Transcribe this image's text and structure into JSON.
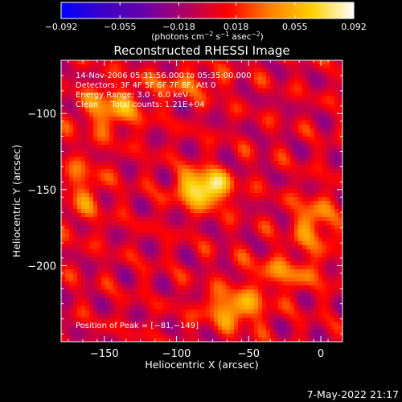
{
  "colorbar": {
    "tick_labels": [
      "−0.092",
      "−0.055",
      "−0.018",
      "0.018",
      "0.055",
      "0.092"
    ],
    "unit_main": "(photons cm",
    "unit_exp1": "−2",
    "unit_mid": " s",
    "unit_exp2": "−1",
    "unit_mid2": " asec",
    "unit_exp3": "−2",
    "unit_end": ")"
  },
  "plot": {
    "title": "Reconstructed RHESSI Image",
    "xlabel": "Heliocentric X (arcsec)",
    "ylabel": "Heliocentric Y (arcsec)",
    "x_tick_labels": [
      "−150",
      "−100",
      "−50",
      "0"
    ],
    "y_tick_labels": [
      "−100",
      "−150",
      "−200"
    ],
    "info_lines": [
      "14-Nov-2006 05:31:56.000 to 05:35:00.000",
      "Detectors: 3F 4F 5F 6F 7F 8F, Att 0",
      "Energy Range: 3.0 - 6.0 keV",
      "Clean     Total counts: 1.21E+04"
    ],
    "peak_label": "Position of Peak = [−81,−149]"
  },
  "footer": {
    "timestamp": "7-May-2022 21:17"
  },
  "chart_data": {
    "type": "heatmap",
    "title": "Reconstructed RHESSI Image",
    "xlabel": "Heliocentric X (arcsec)",
    "ylabel": "Heliocentric Y (arcsec)",
    "xlim": [
      -180,
      15
    ],
    "ylim": [
      -250,
      -65
    ],
    "x_ticks": [
      -150,
      -100,
      -50,
      0
    ],
    "y_ticks": [
      -100,
      -150,
      -200
    ],
    "colorbar_range": [
      -0.092,
      0.092
    ],
    "colorbar_ticks": [
      -0.092,
      -0.055,
      -0.018,
      0.018,
      0.055,
      0.092
    ],
    "colorbar_colors": [
      "#0000ff",
      "#3a00c8",
      "#6a00a8",
      "#b00060",
      "#ff0000",
      "#ff8000",
      "#ffd000",
      "#ffffff"
    ],
    "peak": [
      -81,
      -149
    ],
    "sources": [
      {
        "x": -81,
        "y": -149,
        "sx": 12,
        "sy": 8,
        "amp": 0.095
      },
      {
        "x": -145,
        "y": -97,
        "sx": 14,
        "sy": 10,
        "amp": 0.05
      },
      {
        "x": -60,
        "y": -228,
        "sx": 14,
        "sy": 8,
        "amp": 0.06
      },
      {
        "x": -5,
        "y": -172,
        "sx": 10,
        "sy": 12,
        "amp": 0.045
      },
      {
        "x": -165,
        "y": -150,
        "sx": 10,
        "sy": 16,
        "amp": 0.03
      },
      {
        "x": -25,
        "y": -205,
        "sx": 18,
        "sy": 8,
        "amp": 0.035
      },
      {
        "x": -95,
        "y": -80,
        "sx": 18,
        "sy": 6,
        "amp": 0.03
      }
    ]
  }
}
